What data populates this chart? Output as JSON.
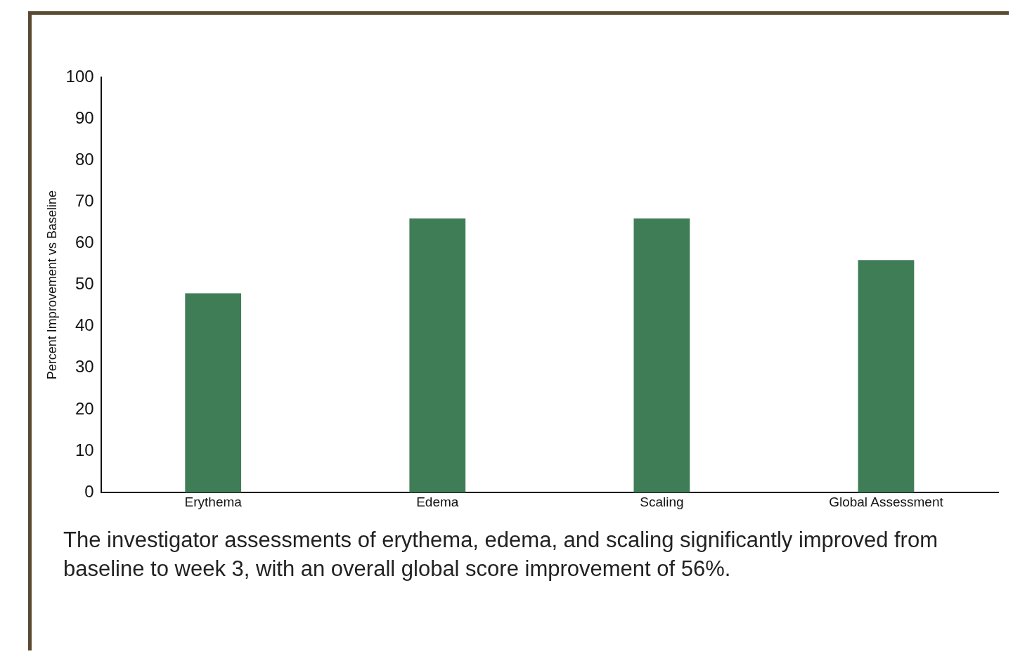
{
  "chart_data": {
    "type": "bar",
    "ylabel": "Percent Improvement vs Baseline",
    "categories": [
      "Erythema",
      "Edema",
      "Scaling",
      "Global Assessment"
    ],
    "values": [
      48,
      66,
      66,
      56
    ],
    "color": "#3f7d57",
    "ylim": [
      0,
      100
    ],
    "yticks": [
      0,
      10,
      20,
      30,
      40,
      50,
      60,
      70,
      80,
      90,
      100
    ],
    "grid": false,
    "legend": false,
    "annotations": [
      "The investigator assessments of erythema, edema, and scaling significantly improved from baseline to week 3, with an overall global score improvement of 56%."
    ]
  }
}
